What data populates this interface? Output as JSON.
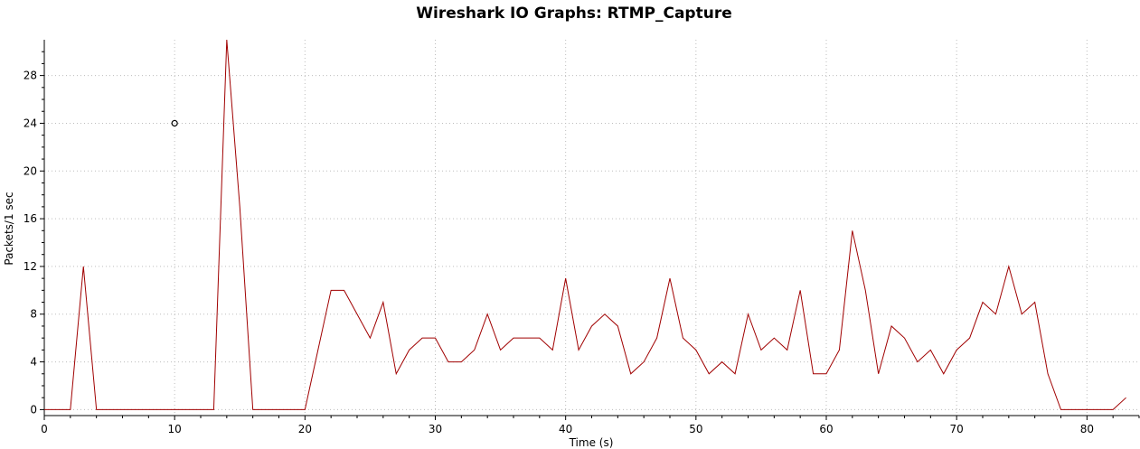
{
  "chart_data": {
    "type": "line",
    "title": "Wireshark IO Graphs: RTMP_Capture",
    "xlabel": "Time (s)",
    "ylabel": "Packets/1 sec",
    "xlim": [
      0,
      84
    ],
    "ylim": [
      -0.5,
      31
    ],
    "x_ticks": [
      0,
      10,
      20,
      30,
      40,
      50,
      60,
      70,
      80
    ],
    "y_ticks": [
      0,
      4,
      8,
      12,
      16,
      20,
      24,
      28
    ],
    "grid": true,
    "colors": {
      "line": "#a00000",
      "marker": "#000000"
    },
    "series": [
      {
        "x": [
          0,
          1,
          2,
          3,
          4,
          5,
          6,
          7,
          8,
          9,
          10,
          11,
          12,
          13,
          14,
          15,
          16,
          17,
          18,
          19,
          20,
          21,
          22,
          23,
          24,
          25,
          26,
          27,
          28,
          29,
          30,
          31,
          32,
          33,
          34,
          35,
          36,
          37,
          38,
          39,
          40,
          41,
          42,
          43,
          44,
          45,
          46,
          47,
          48,
          49,
          50,
          51,
          52,
          53,
          54,
          55,
          56,
          57,
          58,
          59,
          60,
          61,
          62,
          63,
          64,
          65,
          66,
          67,
          68,
          69,
          70,
          71,
          72,
          73,
          74,
          75,
          76,
          77,
          78,
          79,
          80,
          81,
          82,
          83
        ],
        "values": [
          0,
          0,
          0,
          12,
          0,
          0,
          0,
          0,
          0,
          0,
          0,
          0,
          0,
          0,
          31,
          17,
          0,
          0,
          0,
          0,
          0,
          5,
          10,
          10,
          8,
          6,
          9,
          3,
          5,
          6,
          6,
          4,
          4,
          5,
          8,
          5,
          6,
          6,
          6,
          5,
          11,
          5,
          7,
          8,
          7,
          3,
          4,
          6,
          11,
          6,
          5,
          3,
          4,
          3,
          8,
          5,
          6,
          5,
          10,
          3,
          3,
          5,
          15,
          10,
          3,
          7,
          6,
          4,
          5,
          3,
          5,
          6,
          9,
          8,
          12,
          8,
          9,
          3,
          0,
          0,
          0,
          0,
          0,
          1
        ]
      }
    ],
    "markers": [
      {
        "x": 10,
        "y": 24
      }
    ]
  }
}
